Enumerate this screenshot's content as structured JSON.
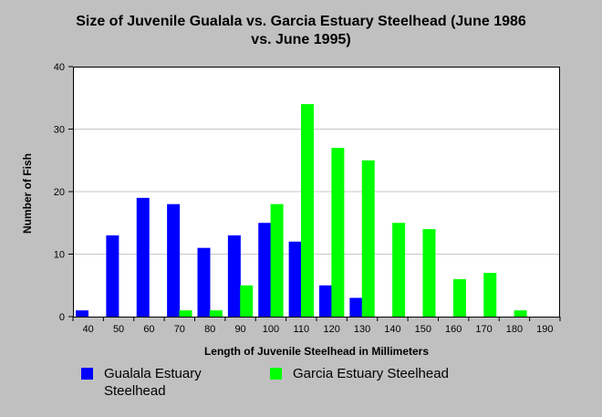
{
  "chart_data": {
    "type": "bar",
    "title_lines": [
      "Size of Juvenile Gualala vs. Garcia Estuary Steelhead (June 1986",
      "vs. June 1995)"
    ],
    "xlabel": "Length of Juvenile Steelhead in Millimeters",
    "ylabel": "Number of Fish",
    "categories": [
      "40",
      "50",
      "60",
      "70",
      "80",
      "90",
      "100",
      "110",
      "120",
      "130",
      "140",
      "150",
      "160",
      "170",
      "180",
      "190"
    ],
    "ylim": [
      0,
      40
    ],
    "yticks": [
      0,
      10,
      20,
      30,
      40
    ],
    "grid": true,
    "legend_position": "bottom",
    "series": [
      {
        "name": "Gualala Estuary Steelhead",
        "color": "#0000ff",
        "values": [
          1,
          13,
          19,
          18,
          11,
          13,
          15,
          12,
          5,
          3,
          0,
          0,
          0,
          0,
          0,
          0
        ]
      },
      {
        "name": "Garcia Estuary Steelhead",
        "color": "#00ff00",
        "values": [
          0,
          0,
          0,
          1,
          1,
          5,
          18,
          34,
          27,
          25,
          15,
          14,
          6,
          7,
          1,
          0
        ]
      }
    ]
  }
}
